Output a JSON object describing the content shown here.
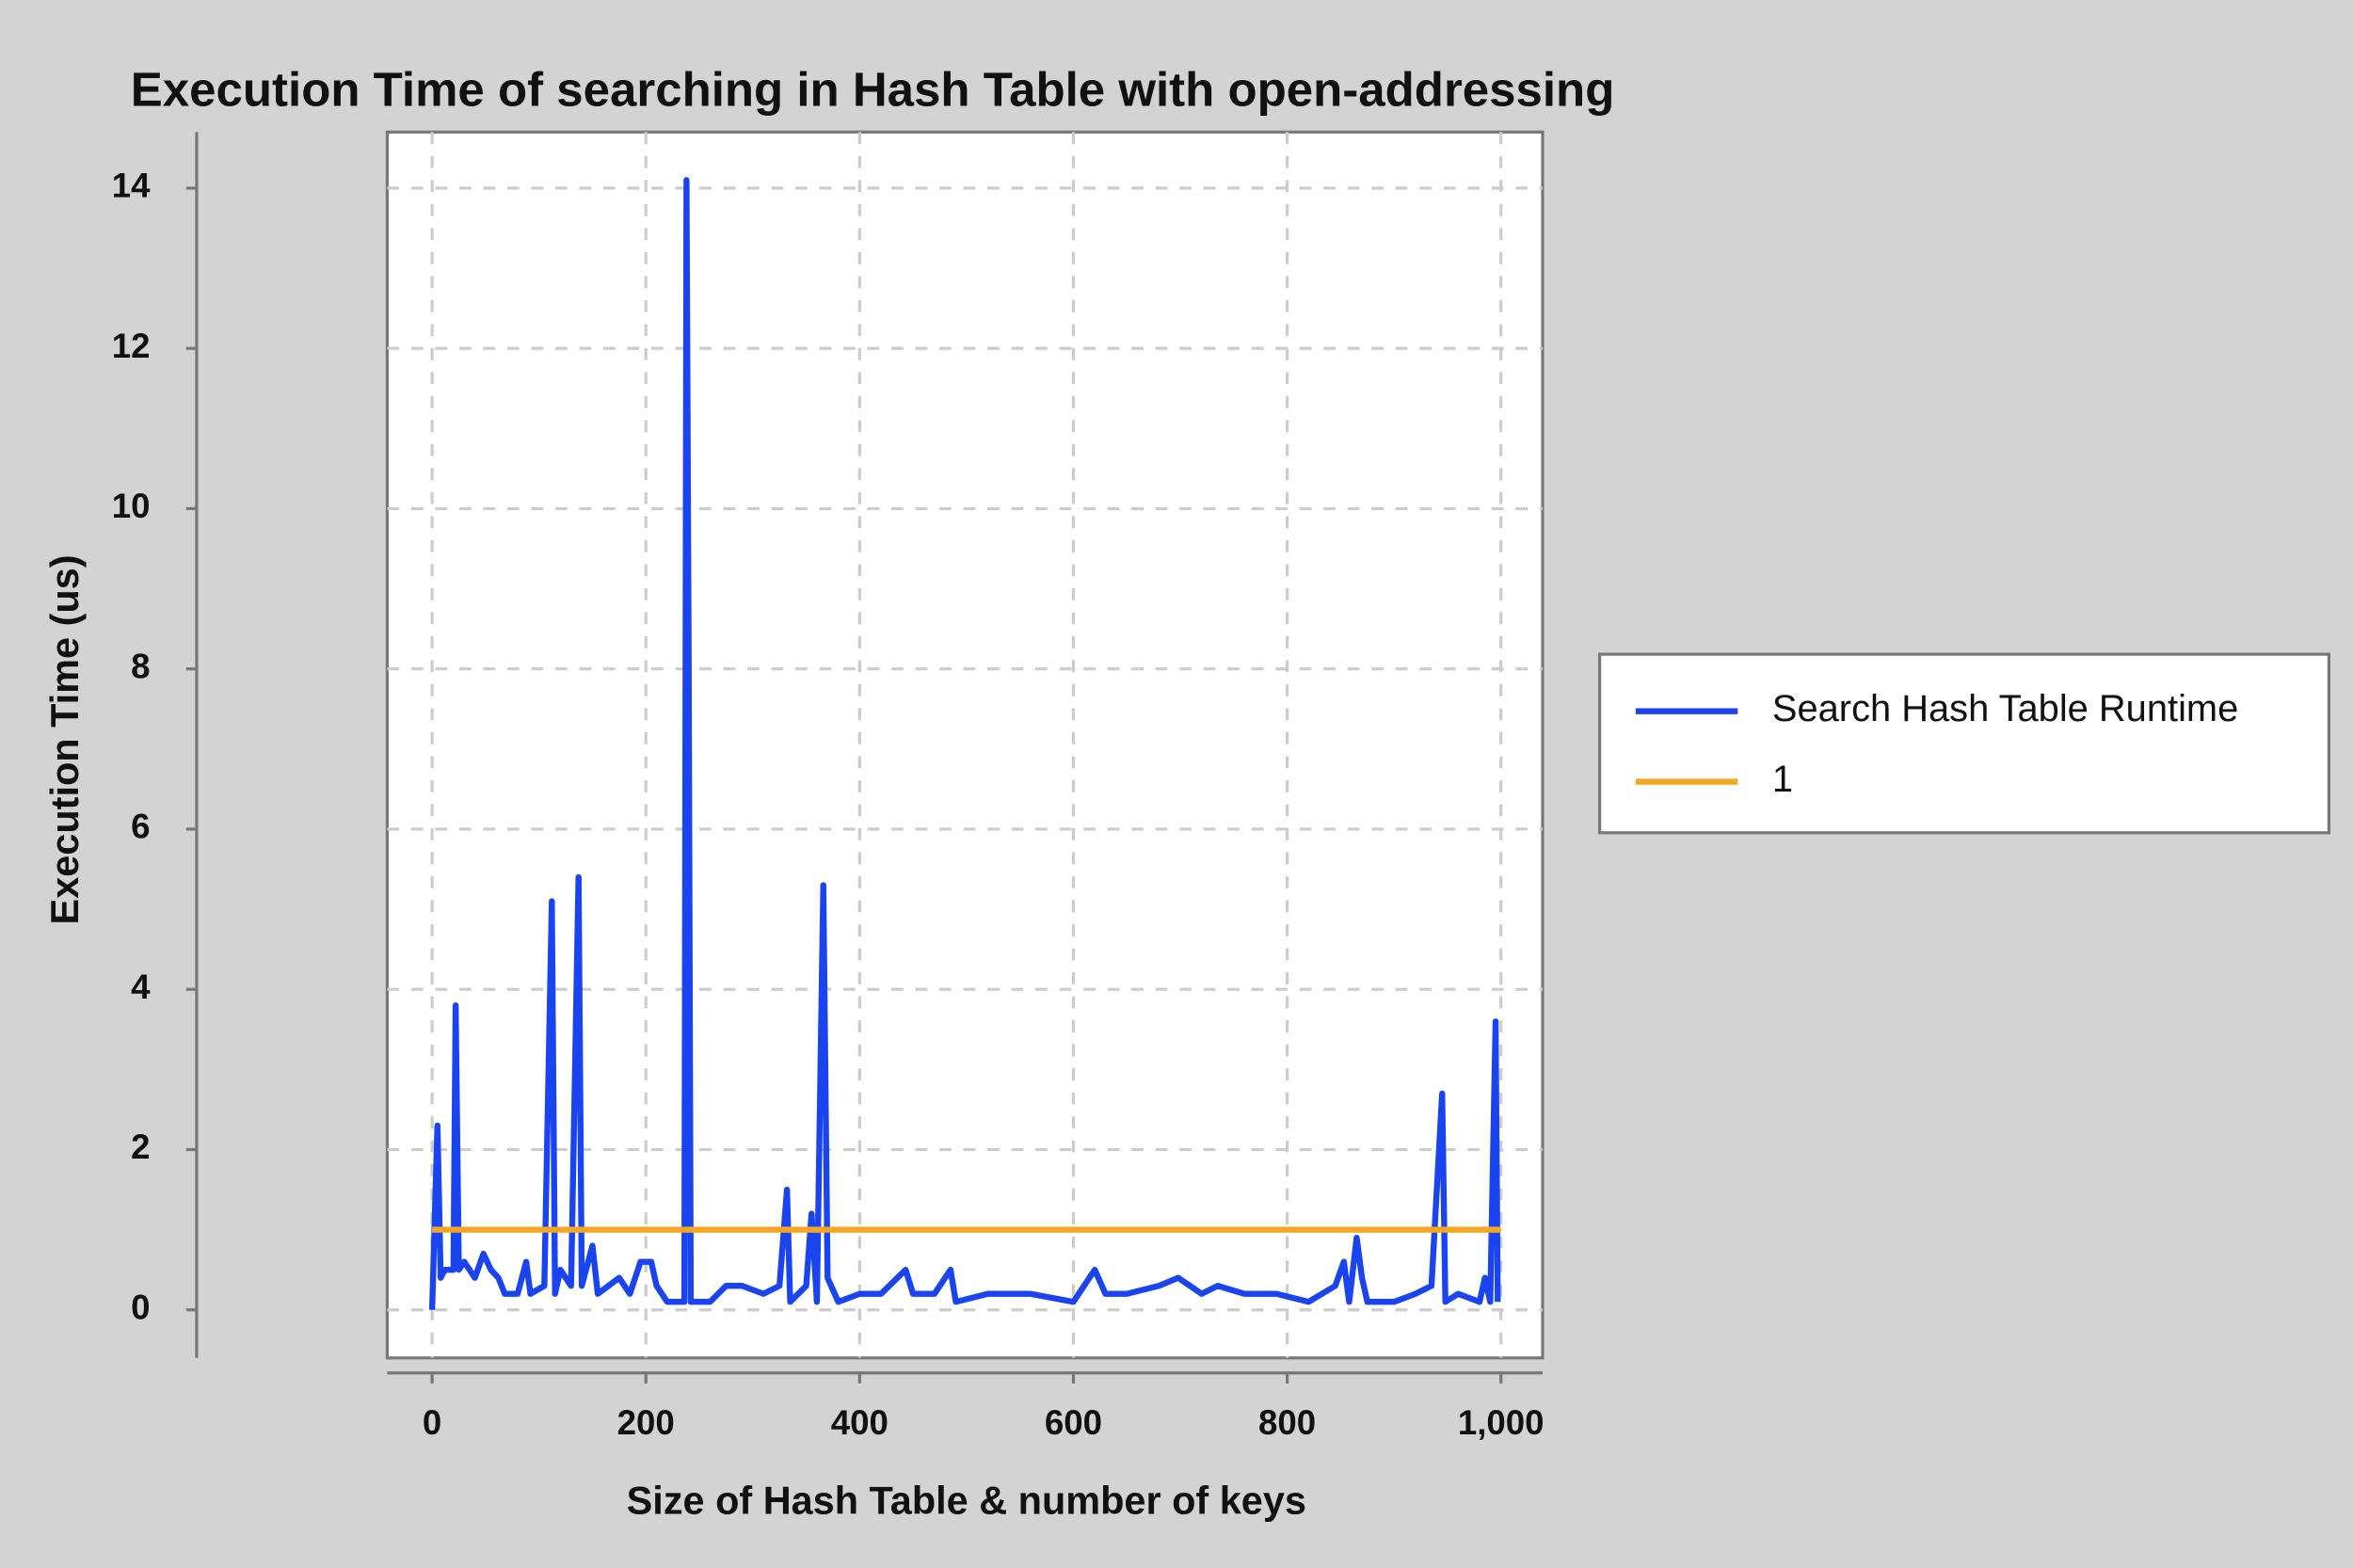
{
  "chart_data": {
    "type": "line",
    "title": "Execution Time of searching in Hash Table with open-addressing",
    "x_label": "Size of Hash Table & number of keys",
    "y_label": "Execution Time (us)",
    "xlim": [
      -42,
      1039
    ],
    "ylim": [
      -0.6,
      14.7
    ],
    "xticks": [
      0,
      200,
      400,
      600,
      800,
      {
        "value": 1000,
        "label": "1,000"
      }
    ],
    "yticks": [
      0,
      2,
      4,
      6,
      8,
      10,
      12,
      14
    ],
    "grid": true,
    "legend": "right",
    "series": [
      {
        "name": "Search Hash Table Runtime",
        "color": "#1a44f0",
        "x": [
          0,
          5,
          8,
          12,
          20,
          22,
          25,
          30,
          40,
          48,
          55,
          62,
          68,
          80,
          88,
          92,
          105,
          112,
          115,
          120,
          130,
          137,
          140,
          150,
          155,
          165,
          175,
          185,
          195,
          205,
          210,
          220,
          236,
          238,
          240,
          242,
          260,
          275,
          290,
          310,
          325,
          332,
          335,
          350,
          355,
          360,
          366,
          370,
          380,
          400,
          420,
          443,
          450,
          470,
          485,
          490,
          520,
          560,
          600,
          620,
          630,
          650,
          680,
          698,
          720,
          735,
          760,
          790,
          820,
          845,
          853,
          858,
          865,
          870,
          875,
          900,
          920,
          935,
          945,
          948,
          960,
          980,
          985,
          990,
          995,
          997
        ],
        "values": [
          0,
          2.3,
          0.4,
          0.5,
          0.5,
          3.8,
          0.5,
          0.6,
          0.4,
          0.7,
          0.5,
          0.4,
          0.2,
          0.2,
          0.6,
          0.2,
          0.3,
          5.1,
          0.2,
          0.5,
          0.3,
          5.4,
          0.3,
          0.8,
          0.2,
          0.3,
          0.4,
          0.2,
          0.6,
          0.6,
          0.3,
          0.1,
          0.1,
          14.1,
          8.2,
          0.1,
          0.1,
          0.3,
          0.3,
          0.2,
          0.3,
          1.5,
          0.1,
          0.3,
          1.2,
          0.1,
          5.3,
          0.4,
          0.1,
          0.2,
          0.2,
          0.5,
          0.2,
          0.2,
          0.5,
          0.1,
          0.2,
          0.2,
          0.1,
          0.5,
          0.2,
          0.2,
          0.3,
          0.4,
          0.2,
          0.3,
          0.2,
          0.2,
          0.1,
          0.3,
          0.6,
          0.1,
          0.9,
          0.4,
          0.1,
          0.1,
          0.2,
          0.3,
          2.7,
          0.1,
          0.2,
          0.1,
          0.4,
          0.1,
          3.6,
          0.1
        ]
      },
      {
        "name": "1",
        "color": "#f5a623",
        "x": [
          0,
          1000
        ],
        "values": [
          1,
          1
        ]
      }
    ]
  }
}
